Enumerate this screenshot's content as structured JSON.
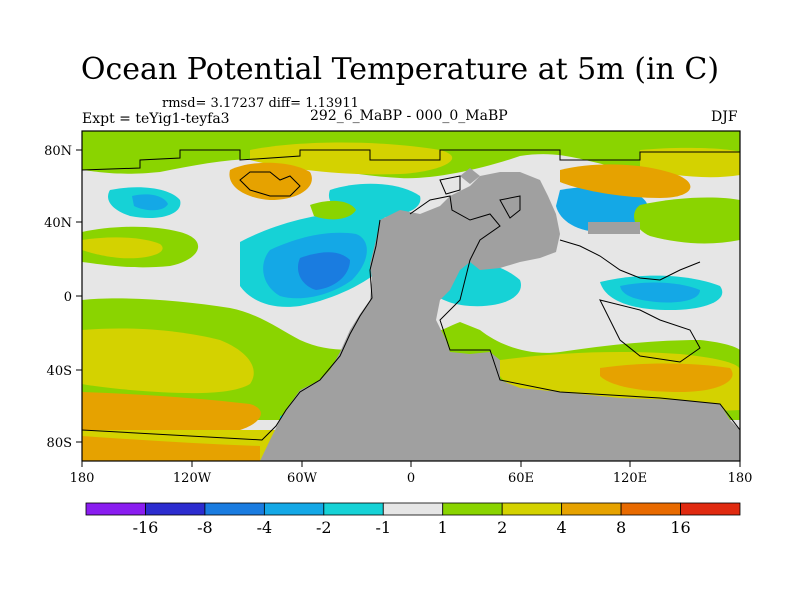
{
  "title": "Ocean Potential Temperature at 5m (in C)",
  "stats_line": "rmsd= 3.17237 diff= 1.13911",
  "experiment_label": "Expt = teYig1-teyfa3",
  "period_label": "292_6_MaBP - 000_0_MaBP",
  "season_label": "DJF",
  "axes": {
    "x_ticks": [
      "180",
      "120W",
      "60W",
      "0",
      "60E",
      "120E",
      "180"
    ],
    "y_ticks": [
      "80N",
      "40N",
      "0",
      "40S",
      "80S"
    ]
  },
  "colorbar": {
    "colors": [
      "#8a1df0",
      "#2c2ccf",
      "#1a7ce0",
      "#14a8e6",
      "#16d2d6",
      "#e6e6e6",
      "#8ad400",
      "#d4d200",
      "#e6a200",
      "#e86a00",
      "#e02a10"
    ],
    "labels": [
      "-16",
      "-8",
      "-4",
      "-2",
      "-1",
      "1",
      "2",
      "4",
      "8",
      "16"
    ]
  },
  "colors": {
    "land": "#a0a0a0",
    "neutral": "#e6e6e6",
    "green": "#8ad400",
    "yellow": "#d4d200",
    "orange": "#e6a200",
    "dark_orange": "#e86a00",
    "cyan": "#16d2d6",
    "light_blue": "#14a8e6",
    "blue": "#1a7ce0"
  }
}
